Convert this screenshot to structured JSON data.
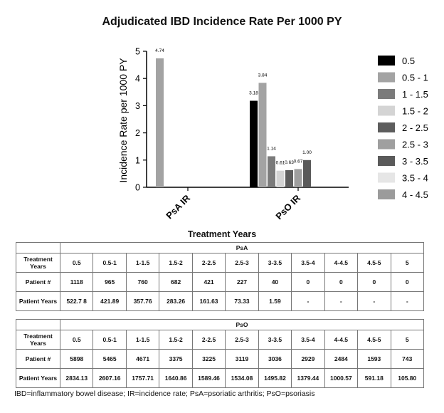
{
  "chart_data": {
    "type": "bar",
    "title": "Adjudicated IBD Incidence Rate Per 1000 PY",
    "ylabel": "Incidence Rate per 1000 PY",
    "xlabel": "",
    "ylim": [
      0,
      5
    ],
    "yticks": [
      0,
      1,
      2,
      3,
      4,
      5
    ],
    "grid": false,
    "legend": "right",
    "categories": [
      "PsA IR",
      "PsO IR"
    ],
    "series": [
      {
        "name": "0.5",
        "color": "#000000",
        "values": [
          null,
          3.18
        ],
        "labels": [
          "",
          "3.18"
        ]
      },
      {
        "name": "0.5 - 1",
        "color": "#a3a3a3",
        "values": [
          4.74,
          3.84
        ],
        "labels": [
          "4.74",
          "3.84"
        ]
      },
      {
        "name": "1 - 1.5",
        "color": "#7b7b7b",
        "values": [
          null,
          1.14
        ],
        "labels": [
          "",
          "1.14"
        ]
      },
      {
        "name": "1.5 - 2",
        "color": "#d4d4d4",
        "values": [
          null,
          0.61
        ],
        "labels": [
          "",
          "0.61"
        ]
      },
      {
        "name": "2 - 2.5",
        "color": "#5d5d5d",
        "values": [
          null,
          0.63
        ],
        "labels": [
          "",
          "0.63"
        ]
      },
      {
        "name": "2.5 - 3",
        "color": "#9f9f9f",
        "values": [
          null,
          0.67
        ],
        "labels": [
          "",
          "0.67"
        ]
      },
      {
        "name": "3 - 3.5",
        "color": "#5a5a5a",
        "values": [
          null,
          1.0
        ],
        "labels": [
          "",
          "1.00"
        ]
      },
      {
        "name": "3.5 - 4",
        "color": "#e6e6e6",
        "values": [
          null,
          null
        ],
        "labels": [
          "",
          ""
        ]
      },
      {
        "name": "4 - 4.5",
        "color": "#9b9b9b",
        "values": [
          null,
          null
        ],
        "labels": [
          "",
          ""
        ]
      }
    ]
  },
  "tables_title": "Treatment Years",
  "psa_table": {
    "group_label": "PsA",
    "header_label": "Treatment Years",
    "columns": [
      "0.5",
      "0.5-1",
      "1-1.5",
      "1.5-2",
      "2-2.5",
      "2.5-3",
      "3-3.5",
      "3.5-4",
      "4-4.5",
      "4.5-5",
      "5"
    ],
    "patient_label": "Patient #",
    "patients": [
      "1118",
      "965",
      "760",
      "682",
      "421",
      "227",
      "40",
      "0",
      "0",
      "0",
      "0"
    ],
    "years_label": "Patient Years",
    "years": [
      "522.7 8",
      "421.89",
      "357.76",
      "283.26",
      "161.63",
      "73.33",
      "1.59",
      "-",
      "-",
      "-",
      "-"
    ]
  },
  "pso_table": {
    "group_label": "PsO",
    "header_label": "Treatment Years",
    "columns": [
      "0.5",
      "0.5-1",
      "1-1.5",
      "1.5-2",
      "2-2.5",
      "2.5-3",
      "3-3.5",
      "3.5-4",
      "4-4.5",
      "4.5-5",
      "5"
    ],
    "patient_label": "Patient #",
    "patients": [
      "5898",
      "5465",
      "4671",
      "3375",
      "3225",
      "3119",
      "3036",
      "2929",
      "2484",
      "1593",
      "743"
    ],
    "years_label": "Patient Years",
    "years": [
      "2834.13",
      "2607.16",
      "1757.71",
      "1640.86",
      "1589.46",
      "1534.08",
      "1495.82",
      "1379.44",
      "1000.57",
      "591.18",
      "105.80"
    ]
  },
  "footnote": "IBD=inflammatory bowel disease; IR=incidence rate; PsA=psoriatic arthritis; PsO=psoriasis"
}
